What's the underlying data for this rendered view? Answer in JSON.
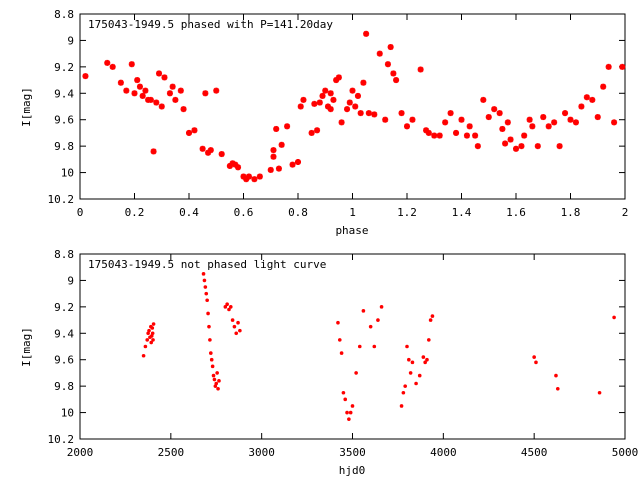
{
  "chart_data": [
    {
      "type": "scatter",
      "title": "175043-1949.5 phased with P=141.20day",
      "xlabel": "phase",
      "ylabel": "I[mag]",
      "xlim": [
        0,
        2
      ],
      "ylim": [
        10.2,
        8.8
      ],
      "y_inverted": true,
      "grid": false,
      "x_ticks": [
        0,
        0.2,
        0.4,
        0.6,
        0.8,
        1,
        1.2,
        1.4,
        1.6,
        1.8,
        2
      ],
      "x_tick_labels": [
        "0",
        "0.2",
        "0.4",
        "0.6",
        "0.8",
        "1",
        "1.2",
        "1.4",
        "1.6",
        "1.8",
        "2"
      ],
      "y_ticks": [
        8.8,
        9,
        9.2,
        9.4,
        9.6,
        9.8,
        10,
        10.2
      ],
      "y_tick_labels": [
        "8.8",
        "9",
        "9.2",
        "9.4",
        "9.6",
        "9.8",
        "10",
        "10.2"
      ],
      "marker": "star",
      "color": "#ff0000",
      "x": [
        0.02,
        0.1,
        0.12,
        0.15,
        0.17,
        0.19,
        0.2,
        0.21,
        0.22,
        0.23,
        0.24,
        0.25,
        0.26,
        0.27,
        0.28,
        0.29,
        0.3,
        0.31,
        0.33,
        0.34,
        0.35,
        0.37,
        0.38,
        0.4,
        0.42,
        0.45,
        0.46,
        0.47,
        0.48,
        0.5,
        0.52,
        0.55,
        0.56,
        0.57,
        0.58,
        0.6,
        0.61,
        0.62,
        0.64,
        0.66,
        0.7,
        0.71,
        0.71,
        0.72,
        0.73,
        0.74,
        0.76,
        0.78,
        0.8,
        0.81,
        0.82,
        0.85,
        0.86,
        0.87,
        0.88,
        0.89,
        0.9,
        0.91,
        0.92,
        0.92,
        0.93,
        0.94,
        0.95,
        0.96,
        0.98,
        0.99,
        1.0,
        1.01,
        1.02,
        1.03,
        1.04,
        1.05,
        1.06,
        1.08,
        1.1,
        1.12,
        1.13,
        1.14,
        1.15,
        1.16,
        1.18,
        1.2,
        1.22,
        1.25,
        1.27,
        1.28,
        1.3,
        1.32,
        1.34,
        1.36,
        1.38,
        1.4,
        1.42,
        1.43,
        1.45,
        1.46,
        1.48,
        1.5,
        1.52,
        1.54,
        1.55,
        1.56,
        1.57,
        1.58,
        1.6,
        1.62,
        1.63,
        1.65,
        1.66,
        1.68,
        1.7,
        1.72,
        1.74,
        1.76,
        1.78,
        1.8,
        1.82,
        1.84,
        1.86,
        1.88,
        1.9,
        1.92,
        1.94,
        1.96,
        1.99
      ],
      "y": [
        9.27,
        9.17,
        9.2,
        9.32,
        9.38,
        9.18,
        9.4,
        9.3,
        9.35,
        9.42,
        9.38,
        9.45,
        9.45,
        9.84,
        9.47,
        9.25,
        9.5,
        9.28,
        9.4,
        9.35,
        9.45,
        9.38,
        9.52,
        9.7,
        9.68,
        9.82,
        9.4,
        9.85,
        9.83,
        9.38,
        9.86,
        9.95,
        9.93,
        9.94,
        9.96,
        10.03,
        10.05,
        10.03,
        10.05,
        10.03,
        9.98,
        9.88,
        9.83,
        9.67,
        9.97,
        9.79,
        9.65,
        9.94,
        9.92,
        9.5,
        9.45,
        9.7,
        9.48,
        9.68,
        9.47,
        9.42,
        9.38,
        9.5,
        9.52,
        9.4,
        9.45,
        9.3,
        9.28,
        9.62,
        9.52,
        9.47,
        9.38,
        9.5,
        9.42,
        9.55,
        9.32,
        8.95,
        9.55,
        9.56,
        9.1,
        9.6,
        9.18,
        9.05,
        9.25,
        9.3,
        9.55,
        9.65,
        9.6,
        9.22,
        9.68,
        9.7,
        9.72,
        9.72,
        9.62,
        9.55,
        9.7,
        9.6,
        9.72,
        9.65,
        9.72,
        9.8,
        9.45,
        9.58,
        9.52,
        9.55,
        9.67,
        9.78,
        9.62,
        9.75,
        9.82,
        9.8,
        9.72,
        9.6,
        9.65,
        9.8,
        9.58,
        9.65,
        9.62,
        9.8,
        9.55,
        9.6,
        9.62,
        9.5,
        9.43,
        9.45,
        9.58,
        9.35,
        9.2,
        9.62,
        9.2
      ]
    },
    {
      "type": "scatter",
      "title": "175043-1949.5 not phased light curve",
      "xlabel": "hjd0",
      "ylabel": "I[mag]",
      "xlim": [
        2000,
        5000
      ],
      "ylim": [
        10.2,
        8.8
      ],
      "y_inverted": true,
      "grid": false,
      "x_ticks": [
        2000,
        2500,
        3000,
        3500,
        4000,
        4500,
        5000
      ],
      "x_tick_labels": [
        "2000",
        "2500",
        "3000",
        "3500",
        "4000",
        "4500",
        "5000"
      ],
      "y_ticks": [
        8.8,
        9,
        9.2,
        9.4,
        9.6,
        9.8,
        10,
        10.2
      ],
      "y_tick_labels": [
        "8.8",
        "9",
        "9.2",
        "9.4",
        "9.6",
        "9.8",
        "10",
        "10.2"
      ],
      "marker": "dot",
      "color": "#ff0000",
      "x": [
        2350,
        2360,
        2370,
        2375,
        2380,
        2385,
        2390,
        2392,
        2395,
        2398,
        2400,
        2402,
        2405,
        2680,
        2685,
        2690,
        2695,
        2700,
        2705,
        2710,
        2715,
        2720,
        2725,
        2730,
        2735,
        2740,
        2745,
        2750,
        2755,
        2760,
        2765,
        2800,
        2810,
        2820,
        2830,
        2840,
        2850,
        2860,
        2870,
        2880,
        3420,
        3430,
        3440,
        3450,
        3460,
        3470,
        3480,
        3490,
        3500,
        3520,
        3540,
        3560,
        3600,
        3620,
        3640,
        3660,
        3770,
        3780,
        3790,
        3800,
        3810,
        3820,
        3830,
        3850,
        3870,
        3890,
        3900,
        3910,
        3920,
        3930,
        3940,
        4500,
        4510,
        4620,
        4630,
        4860,
        4940
      ],
      "y": [
        9.57,
        9.5,
        9.45,
        9.4,
        9.38,
        9.43,
        9.35,
        9.47,
        9.42,
        9.36,
        9.4,
        9.45,
        9.33,
        8.95,
        9.0,
        9.05,
        9.1,
        9.15,
        9.25,
        9.35,
        9.45,
        9.55,
        9.6,
        9.65,
        9.72,
        9.75,
        9.8,
        9.78,
        9.7,
        9.82,
        9.76,
        9.2,
        9.18,
        9.22,
        9.2,
        9.3,
        9.35,
        9.4,
        9.32,
        9.38,
        9.32,
        9.45,
        9.55,
        9.85,
        9.9,
        10.0,
        10.05,
        10.0,
        9.95,
        9.7,
        9.5,
        9.23,
        9.35,
        9.5,
        9.3,
        9.2,
        9.95,
        9.85,
        9.8,
        9.5,
        9.6,
        9.7,
        9.62,
        9.78,
        9.72,
        9.58,
        9.62,
        9.6,
        9.45,
        9.3,
        9.27,
        9.58,
        9.62,
        9.72,
        9.82,
        9.85,
        9.28
      ]
    }
  ]
}
